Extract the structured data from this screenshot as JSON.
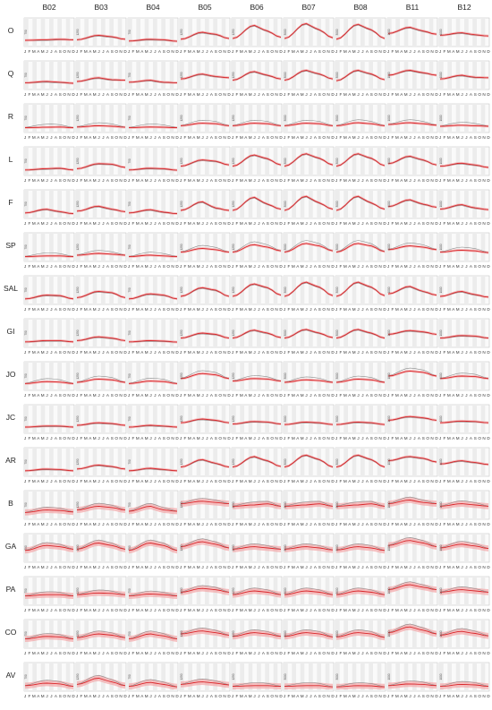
{
  "chart_data": {
    "type": "line",
    "columns": [
      "B02",
      "B03",
      "B04",
      "B05",
      "B06",
      "B07",
      "B08",
      "B11",
      "B12"
    ],
    "rows": [
      "O",
      "Q",
      "R",
      "L",
      "F",
      "SP",
      "SAL",
      "GI",
      "JO",
      "JC",
      "AR",
      "B",
      "GA",
      "PA",
      "CO",
      "AV"
    ],
    "months": [
      "J",
      "F",
      "M",
      "A",
      "M",
      "J",
      "J",
      "A",
      "S",
      "O",
      "N",
      "D"
    ],
    "ytick_labels": {
      "B02": [
        "750"
      ],
      "B03": [
        "1250"
      ],
      "B04": [
        "750"
      ],
      "B05": [
        "1250"
      ],
      "B06": [
        "1250"
      ],
      "B07": [
        "3000"
      ],
      "B08": [
        "3000"
      ],
      "B11": [
        "1000"
      ],
      "B12": [
        "1000"
      ]
    },
    "series": [
      {
        "name": "",
        "role": "class mean",
        "color": "#d9262a",
        "band_color": "#f4a6a8"
      },
      {
        "name": "",
        "role": "reference",
        "color": "#8c8c8c"
      }
    ],
    "grid": true,
    "profiles_note_values_relative": "values below are relative reflectance (0-1) per panel",
    "profiles": {
      "O": {
        "B02": [
          0.18,
          0.2,
          0.22,
          0.2
        ],
        "B03": [
          0.2,
          0.38,
          0.32,
          0.22
        ],
        "B04": [
          0.15,
          0.22,
          0.2,
          0.14
        ],
        "B05": [
          0.22,
          0.5,
          0.42,
          0.25
        ],
        "B06": [
          0.25,
          0.78,
          0.55,
          0.3
        ],
        "B07": [
          0.25,
          0.85,
          0.6,
          0.28
        ],
        "B08": [
          0.22,
          0.82,
          0.6,
          0.25
        ],
        "B11": [
          0.45,
          0.7,
          0.55,
          0.42
        ],
        "B12": [
          0.38,
          0.48,
          0.4,
          0.35
        ]
      },
      "Q": {
        "B02": [
          0.2,
          0.25,
          0.22,
          0.18
        ],
        "B03": [
          0.25,
          0.4,
          0.32,
          0.3
        ],
        "B04": [
          0.22,
          0.3,
          0.22,
          0.2
        ],
        "B05": [
          0.35,
          0.55,
          0.45,
          0.4
        ],
        "B06": [
          0.3,
          0.65,
          0.5,
          0.35
        ],
        "B07": [
          0.3,
          0.7,
          0.55,
          0.35
        ],
        "B08": [
          0.28,
          0.7,
          0.55,
          0.32
        ],
        "B11": [
          0.5,
          0.7,
          0.6,
          0.5
        ],
        "B12": [
          0.35,
          0.5,
          0.42,
          0.4
        ]
      },
      "R": {
        "B02": [
          0.12,
          0.14,
          0.15,
          0.12
        ],
        "B03": [
          0.15,
          0.2,
          0.18,
          0.14
        ],
        "B04": [
          0.12,
          0.15,
          0.14,
          0.12
        ],
        "B05": [
          0.2,
          0.3,
          0.28,
          0.2
        ],
        "B06": [
          0.2,
          0.3,
          0.28,
          0.2
        ],
        "B07": [
          0.2,
          0.3,
          0.28,
          0.2
        ],
        "B08": [
          0.2,
          0.32,
          0.28,
          0.2
        ],
        "B11": [
          0.25,
          0.32,
          0.28,
          0.22
        ],
        "B12": [
          0.18,
          0.22,
          0.2,
          0.18
        ]
      },
      "L": {
        "B02": [
          0.15,
          0.2,
          0.22,
          0.15
        ],
        "B03": [
          0.2,
          0.4,
          0.38,
          0.25
        ],
        "B04": [
          0.15,
          0.22,
          0.2,
          0.14
        ],
        "B05": [
          0.3,
          0.55,
          0.5,
          0.35
        ],
        "B06": [
          0.3,
          0.75,
          0.6,
          0.35
        ],
        "B07": [
          0.3,
          0.8,
          0.62,
          0.35
        ],
        "B08": [
          0.3,
          0.8,
          0.62,
          0.32
        ],
        "B11": [
          0.4,
          0.7,
          0.55,
          0.35
        ],
        "B12": [
          0.3,
          0.42,
          0.35,
          0.25
        ]
      },
      "F": {
        "B02": [
          0.15,
          0.3,
          0.2,
          0.12
        ],
        "B03": [
          0.22,
          0.42,
          0.3,
          0.2
        ],
        "B04": [
          0.15,
          0.28,
          0.18,
          0.12
        ],
        "B05": [
          0.25,
          0.6,
          0.35,
          0.25
        ],
        "B06": [
          0.25,
          0.78,
          0.5,
          0.3
        ],
        "B07": [
          0.25,
          0.82,
          0.55,
          0.3
        ],
        "B08": [
          0.25,
          0.82,
          0.55,
          0.3
        ],
        "B11": [
          0.4,
          0.68,
          0.5,
          0.38
        ],
        "B12": [
          0.3,
          0.48,
          0.35,
          0.28
        ]
      },
      "SP": {
        "B02": [
          0.12,
          0.15,
          0.15,
          0.12
        ],
        "B03": [
          0.18,
          0.25,
          0.22,
          0.18
        ],
        "B04": [
          0.12,
          0.18,
          0.15,
          0.12
        ],
        "B05": [
          0.3,
          0.45,
          0.4,
          0.3
        ],
        "B06": [
          0.3,
          0.6,
          0.5,
          0.35
        ],
        "B07": [
          0.3,
          0.65,
          0.55,
          0.35
        ],
        "B08": [
          0.3,
          0.65,
          0.55,
          0.32
        ],
        "B11": [
          0.4,
          0.55,
          0.5,
          0.4
        ],
        "B12": [
          0.3,
          0.38,
          0.35,
          0.28
        ]
      },
      "SAL": {
        "B02": [
          0.15,
          0.3,
          0.28,
          0.15
        ],
        "B03": [
          0.2,
          0.45,
          0.4,
          0.2
        ],
        "B04": [
          0.15,
          0.35,
          0.3,
          0.15
        ],
        "B05": [
          0.25,
          0.6,
          0.5,
          0.25
        ],
        "B06": [
          0.25,
          0.75,
          0.6,
          0.3
        ],
        "B07": [
          0.25,
          0.82,
          0.62,
          0.28
        ],
        "B08": [
          0.25,
          0.82,
          0.62,
          0.28
        ],
        "B11": [
          0.35,
          0.65,
          0.45,
          0.3
        ],
        "B12": [
          0.25,
          0.45,
          0.32,
          0.22
        ]
      },
      "GI": {
        "B02": [
          0.15,
          0.2,
          0.2,
          0.15
        ],
        "B03": [
          0.2,
          0.35,
          0.3,
          0.2
        ],
        "B04": [
          0.15,
          0.2,
          0.18,
          0.14
        ],
        "B05": [
          0.3,
          0.5,
          0.45,
          0.3
        ],
        "B06": [
          0.3,
          0.62,
          0.5,
          0.32
        ],
        "B07": [
          0.3,
          0.65,
          0.5,
          0.32
        ],
        "B08": [
          0.3,
          0.65,
          0.5,
          0.3
        ],
        "B11": [
          0.45,
          0.6,
          0.55,
          0.45
        ],
        "B12": [
          0.3,
          0.4,
          0.38,
          0.3
        ]
      },
      "JO": {
        "B02": [
          0.2,
          0.28,
          0.26,
          0.2
        ],
        "B03": [
          0.25,
          0.38,
          0.35,
          0.25
        ],
        "B04": [
          0.2,
          0.3,
          0.28,
          0.2
        ],
        "B05": [
          0.4,
          0.6,
          0.55,
          0.4
        ],
        "B06": [
          0.3,
          0.4,
          0.38,
          0.3
        ],
        "B07": [
          0.25,
          0.35,
          0.32,
          0.25
        ],
        "B08": [
          0.25,
          0.38,
          0.35,
          0.25
        ],
        "B11": [
          0.5,
          0.7,
          0.65,
          0.5
        ],
        "B12": [
          0.4,
          0.5,
          0.48,
          0.4
        ]
      },
      "JC": {
        "B02": [
          0.18,
          0.22,
          0.22,
          0.18
        ],
        "B03": [
          0.25,
          0.35,
          0.32,
          0.25
        ],
        "B04": [
          0.18,
          0.25,
          0.22,
          0.18
        ],
        "B05": [
          0.35,
          0.5,
          0.45,
          0.35
        ],
        "B06": [
          0.3,
          0.4,
          0.38,
          0.3
        ],
        "B07": [
          0.28,
          0.38,
          0.35,
          0.28
        ],
        "B08": [
          0.28,
          0.38,
          0.35,
          0.28
        ],
        "B11": [
          0.45,
          0.6,
          0.55,
          0.45
        ],
        "B12": [
          0.35,
          0.42,
          0.4,
          0.35
        ]
      },
      "AR": {
        "B02": [
          0.15,
          0.22,
          0.2,
          0.15
        ],
        "B03": [
          0.22,
          0.38,
          0.32,
          0.22
        ],
        "B04": [
          0.15,
          0.25,
          0.2,
          0.15
        ],
        "B05": [
          0.3,
          0.6,
          0.45,
          0.3
        ],
        "B06": [
          0.3,
          0.72,
          0.55,
          0.32
        ],
        "B07": [
          0.3,
          0.78,
          0.6,
          0.3
        ],
        "B08": [
          0.3,
          0.78,
          0.6,
          0.3
        ],
        "B11": [
          0.55,
          0.72,
          0.65,
          0.5
        ],
        "B12": [
          0.42,
          0.55,
          0.48,
          0.4
        ]
      },
      "B": {
        "B02": [
          0.2,
          0.3,
          0.28,
          0.22
        ],
        "B03": [
          0.3,
          0.45,
          0.4,
          0.3
        ],
        "B04": [
          0.25,
          0.45,
          0.3,
          0.25
        ],
        "B05": [
          0.55,
          0.65,
          0.6,
          0.55
        ],
        "B06": [
          0.45,
          0.5,
          0.55,
          0.45
        ],
        "B07": [
          0.45,
          0.5,
          0.55,
          0.45
        ],
        "B08": [
          0.45,
          0.5,
          0.55,
          0.45
        ],
        "B11": [
          0.55,
          0.7,
          0.6,
          0.55
        ],
        "B12": [
          0.45,
          0.55,
          0.5,
          0.45
        ]
      },
      "GA": {
        "B02": [
          0.4,
          0.6,
          0.55,
          0.45
        ],
        "B03": [
          0.45,
          0.7,
          0.6,
          0.45
        ],
        "B04": [
          0.4,
          0.7,
          0.6,
          0.4
        ],
        "B05": [
          0.55,
          0.75,
          0.65,
          0.5
        ],
        "B06": [
          0.45,
          0.55,
          0.5,
          0.45
        ],
        "B07": [
          0.45,
          0.55,
          0.5,
          0.42
        ],
        "B08": [
          0.42,
          0.55,
          0.5,
          0.4
        ],
        "B11": [
          0.6,
          0.8,
          0.7,
          0.55
        ],
        "B12": [
          0.5,
          0.65,
          0.58,
          0.48
        ]
      },
      "PA": {
        "B02": [
          0.3,
          0.35,
          0.35,
          0.3
        ],
        "B03": [
          0.35,
          0.42,
          0.4,
          0.35
        ],
        "B04": [
          0.3,
          0.38,
          0.35,
          0.3
        ],
        "B05": [
          0.45,
          0.6,
          0.55,
          0.45
        ],
        "B06": [
          0.35,
          0.5,
          0.45,
          0.35
        ],
        "B07": [
          0.35,
          0.5,
          0.45,
          0.35
        ],
        "B08": [
          0.35,
          0.5,
          0.45,
          0.35
        ],
        "B11": [
          0.55,
          0.75,
          0.65,
          0.55
        ],
        "B12": [
          0.45,
          0.55,
          0.5,
          0.45
        ]
      },
      "CO": {
        "B02": [
          0.3,
          0.4,
          0.38,
          0.3
        ],
        "B03": [
          0.35,
          0.5,
          0.45,
          0.35
        ],
        "B04": [
          0.3,
          0.5,
          0.42,
          0.3
        ],
        "B05": [
          0.5,
          0.62,
          0.55,
          0.45
        ],
        "B06": [
          0.4,
          0.55,
          0.5,
          0.4
        ],
        "B07": [
          0.4,
          0.55,
          0.5,
          0.38
        ],
        "B08": [
          0.38,
          0.55,
          0.5,
          0.36
        ],
        "B11": [
          0.55,
          0.78,
          0.65,
          0.5
        ],
        "B12": [
          0.45,
          0.6,
          0.52,
          0.42
        ]
      },
      "AV": {
        "B02": [
          0.15,
          0.25,
          0.22,
          0.12
        ],
        "B03": [
          0.2,
          0.45,
          0.3,
          0.15
        ],
        "B04": [
          0.12,
          0.28,
          0.2,
          0.1
        ],
        "B05": [
          0.2,
          0.3,
          0.25,
          0.18
        ],
        "B06": [
          0.12,
          0.15,
          0.15,
          0.12
        ],
        "B07": [
          0.12,
          0.15,
          0.15,
          0.1
        ],
        "B08": [
          0.1,
          0.15,
          0.14,
          0.1
        ],
        "B11": [
          0.15,
          0.22,
          0.2,
          0.15
        ],
        "B12": [
          0.12,
          0.2,
          0.18,
          0.12
        ]
      }
    }
  }
}
